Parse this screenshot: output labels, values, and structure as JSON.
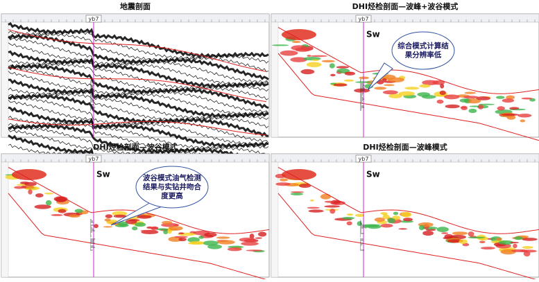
{
  "panels": [
    {
      "title": "地震剖面",
      "well": "yb7"
    },
    {
      "title": "DHI烃检剖面—波峰+波谷模式",
      "well": "yb7",
      "sw": "Sw"
    },
    {
      "title": "DHI烃检剖面—波谷模式",
      "well": "yb7",
      "sw": "Sw"
    },
    {
      "title": "DHI烃检剖面—波峰模式",
      "well": "yb7",
      "sw": "Sw"
    }
  ],
  "callouts": [
    {
      "text_lines": [
        "综合模式计算结",
        "果分辨率低"
      ]
    },
    {
      "text_lines": [
        "波谷模式油气检测",
        "结果与实钻井吻合",
        "度更高"
      ]
    }
  ]
}
